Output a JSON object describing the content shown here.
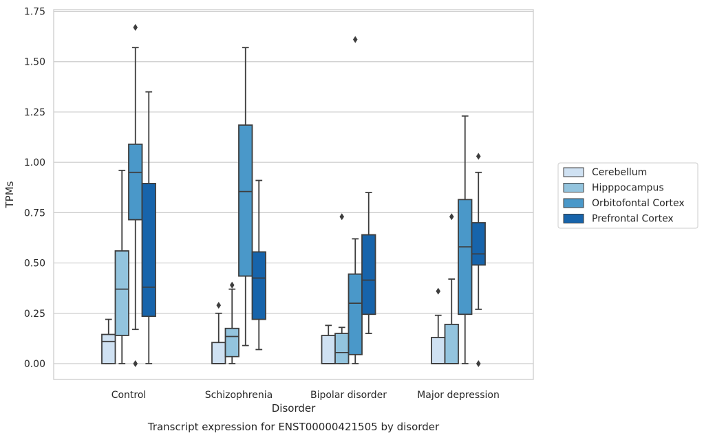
{
  "chart_data": {
    "type": "boxplot",
    "caption": "Transcript expression for ENST00000421505 by disorder",
    "xlabel": "Disorder",
    "ylabel": "TPMs",
    "ylim": [
      -0.08,
      1.76
    ],
    "yticks": [
      "0.00",
      "0.25",
      "0.50",
      "0.75",
      "1.00",
      "1.25",
      "1.50",
      "1.75"
    ],
    "grid": true,
    "legend_placement": "right",
    "categories": [
      "Control",
      "Schizophrenia",
      "Bipolar disorder",
      "Major depression"
    ],
    "series": [
      {
        "name": "Cerebellum",
        "color": "#cfe1f2",
        "boxes": [
          {
            "category": "Control",
            "whisker_low": 0.0,
            "q1": 0.0,
            "median": 0.11,
            "q3": 0.145,
            "whisker_high": 0.22,
            "outliers": []
          },
          {
            "category": "Schizophrenia",
            "whisker_low": 0.0,
            "q1": 0.0,
            "median": 0.0,
            "q3": 0.105,
            "whisker_high": 0.25,
            "outliers": [
              0.29
            ]
          },
          {
            "category": "Bipolar disorder",
            "whisker_low": 0.0,
            "q1": 0.0,
            "median": 0.0,
            "q3": 0.14,
            "whisker_high": 0.19,
            "outliers": []
          },
          {
            "category": "Major depression",
            "whisker_low": 0.0,
            "q1": 0.0,
            "median": 0.0,
            "q3": 0.13,
            "whisker_high": 0.24,
            "outliers": [
              0.36
            ]
          }
        ]
      },
      {
        "name": "Hipppocampus",
        "color": "#93c4de",
        "boxes": [
          {
            "category": "Control",
            "whisker_low": 0.0,
            "q1": 0.14,
            "median": 0.37,
            "q3": 0.56,
            "whisker_high": 0.96,
            "outliers": []
          },
          {
            "category": "Schizophrenia",
            "whisker_low": 0.0,
            "q1": 0.035,
            "median": 0.135,
            "q3": 0.175,
            "whisker_high": 0.37,
            "outliers": [
              0.39
            ]
          },
          {
            "category": "Bipolar disorder",
            "whisker_low": 0.0,
            "q1": 0.0,
            "median": 0.055,
            "q3": 0.15,
            "whisker_high": 0.18,
            "outliers": [
              0.73
            ]
          },
          {
            "category": "Major depression",
            "whisker_low": 0.0,
            "q1": 0.0,
            "median": 0.0,
            "q3": 0.195,
            "whisker_high": 0.42,
            "outliers": [
              0.73
            ]
          }
        ]
      },
      {
        "name": "Orbitofontal Cortex",
        "color": "#4a98c9",
        "boxes": [
          {
            "category": "Control",
            "whisker_low": 0.17,
            "q1": 0.715,
            "median": 0.95,
            "q3": 1.09,
            "whisker_high": 1.57,
            "outliers": [
              0.0,
              1.67
            ]
          },
          {
            "category": "Schizophrenia",
            "whisker_low": 0.09,
            "q1": 0.435,
            "median": 0.855,
            "q3": 1.185,
            "whisker_high": 1.57,
            "outliers": []
          },
          {
            "category": "Bipolar disorder",
            "whisker_low": 0.0,
            "q1": 0.045,
            "median": 0.3,
            "q3": 0.445,
            "whisker_high": 0.62,
            "outliers": [
              1.61
            ]
          },
          {
            "category": "Major depression",
            "whisker_low": 0.0,
            "q1": 0.245,
            "median": 0.58,
            "q3": 0.815,
            "whisker_high": 1.23,
            "outliers": []
          }
        ]
      },
      {
        "name": "Prefrontal Cortex",
        "color": "#1764ab",
        "boxes": [
          {
            "category": "Control",
            "whisker_low": 0.0,
            "q1": 0.235,
            "median": 0.38,
            "q3": 0.895,
            "whisker_high": 1.35,
            "outliers": []
          },
          {
            "category": "Schizophrenia",
            "whisker_low": 0.07,
            "q1": 0.22,
            "median": 0.425,
            "q3": 0.555,
            "whisker_high": 0.91,
            "outliers": []
          },
          {
            "category": "Bipolar disorder",
            "whisker_low": 0.15,
            "q1": 0.245,
            "median": 0.415,
            "q3": 0.64,
            "whisker_high": 0.85,
            "outliers": []
          },
          {
            "category": "Major depression",
            "whisker_low": 0.27,
            "q1": 0.49,
            "median": 0.545,
            "q3": 0.7,
            "whisker_high": 0.95,
            "outliers": [
              0.0,
              1.03
            ]
          }
        ]
      }
    ]
  }
}
